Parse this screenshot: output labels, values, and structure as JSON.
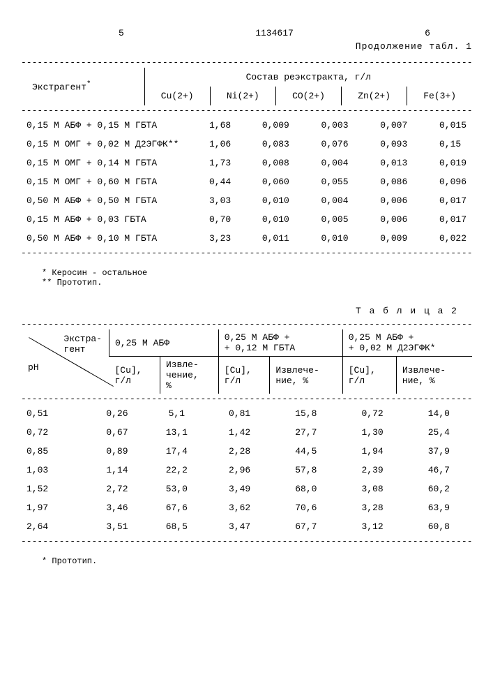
{
  "header": {
    "left_page": "5",
    "doc_number": "1134617",
    "right_page": "6",
    "continuation": "Продолжение табл. 1"
  },
  "table1": {
    "columns": {
      "extragent": "Экстрагент",
      "extragent_note": "*",
      "composition": "Состав реэкстракта, г/л",
      "cu": "Cu(2+)",
      "ni": "Ni(2+)",
      "co": "CO(2+)",
      "zn": "Zn(2+)",
      "fe": "Fe(3+)"
    },
    "rows": [
      {
        "extragent": "0,15 М АБФ + 0,15 М ГБТА",
        "cu": "1,68",
        "ni": "0,009",
        "co": "0,003",
        "zn": "0,007",
        "fe": "0,015"
      },
      {
        "extragent": "0,15 М ОМГ + 0,02 М Д2ЭГФК**",
        "cu": "1,06",
        "ni": "0,083",
        "co": "0,076",
        "zn": "0,093",
        "fe": "0,15"
      },
      {
        "extragent": "0,15 М ОМГ + 0,14 М ГБТА",
        "cu": "1,73",
        "ni": "0,008",
        "co": "0,004",
        "zn": "0,013",
        "fe": "0,019"
      },
      {
        "extragent": "0,15 М ОМГ + 0,60 М ГБТА",
        "cu": "0,44",
        "ni": "0,060",
        "co": "0,055",
        "zn": "0,086",
        "fe": "0,096"
      },
      {
        "extragent": "0,50 М АБФ + 0,50 М ГБТА",
        "cu": "3,03",
        "ni": "0,010",
        "co": "0,004",
        "zn": "0,006",
        "fe": "0,017"
      },
      {
        "extragent": "0,15 М АБФ + 0,03 ГБТА",
        "cu": "0,70",
        "ni": "0,010",
        "co": "0,005",
        "zn": "0,006",
        "fe": "0,017"
      },
      {
        "extragent": "0,50 М АБФ + 0,10 М ГБТА",
        "cu": "3,23",
        "ni": "0,011",
        "co": "0,010",
        "zn": "0,009",
        "fe": "0,022"
      }
    ]
  },
  "footnotes1": {
    "star": "* Керосин - остальное",
    "dstar": "** Прототип."
  },
  "table2": {
    "title": "Т а б л и ц а  2",
    "header": {
      "extragent": "Экстра-\nгент",
      "ph": "pH",
      "group1": "0,25 М АБФ",
      "group2": "0,25 М АБФ +\n+ 0,12 М ГБТА",
      "group3": "0,25 М АБФ +\n+ 0,02 М Д2ЭГФК*",
      "cu": "[Cu],\nг/л",
      "extract": "Извле-\nчение,\n%",
      "extract2": "Извлече-\nние, %"
    },
    "rows": [
      {
        "ph": "0,51",
        "c1": "0,26",
        "e1": "5,1",
        "c2": "0,81",
        "e2": "15,8",
        "c3": "0,72",
        "e3": "14,0"
      },
      {
        "ph": "0,72",
        "c1": "0,67",
        "e1": "13,1",
        "c2": "1,42",
        "e2": "27,7",
        "c3": "1,30",
        "e3": "25,4"
      },
      {
        "ph": "0,85",
        "c1": "0,89",
        "e1": "17,4",
        "c2": "2,28",
        "e2": "44,5",
        "c3": "1,94",
        "e3": "37,9"
      },
      {
        "ph": "1,03",
        "c1": "1,14",
        "e1": "22,2",
        "c2": "2,96",
        "e2": "57,8",
        "c3": "2,39",
        "e3": "46,7"
      },
      {
        "ph": "1,52",
        "c1": "2,72",
        "e1": "53,0",
        "c2": "3,49",
        "e2": "68,0",
        "c3": "3,08",
        "e3": "60,2"
      },
      {
        "ph": "1,97",
        "c1": "3,46",
        "e1": "67,6",
        "c2": "3,62",
        "e2": "70,6",
        "c3": "3,28",
        "e3": "63,9"
      },
      {
        "ph": "2,64",
        "c1": "3,51",
        "e1": "68,5",
        "c2": "3,47",
        "e2": "67,7",
        "c3": "3,12",
        "e3": "60,8"
      }
    ]
  },
  "footnote2": "* Прототип."
}
